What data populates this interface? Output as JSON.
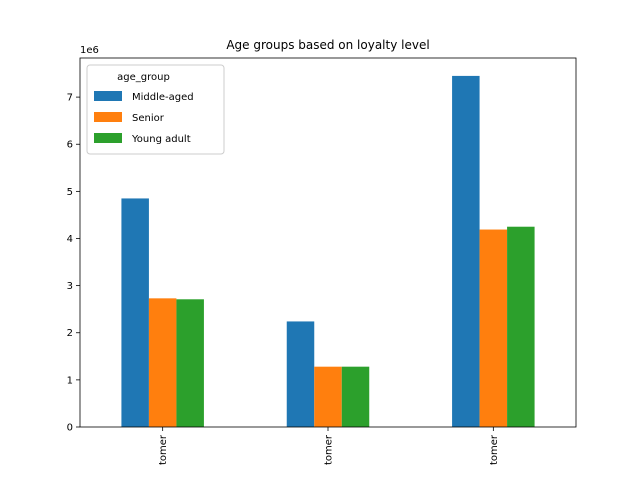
{
  "chart_data": {
    "type": "bar",
    "title": "Age groups based on loyalty level",
    "xlabel": "",
    "ylabel": "",
    "y_scale_note": "1e6",
    "categories": [
      "tomer",
      "tomer",
      "tomer"
    ],
    "series": [
      {
        "name": "Middle-aged",
        "color": "#1f77b4",
        "values": [
          4850000,
          2240000,
          7450000
        ]
      },
      {
        "name": "Senior",
        "color": "#ff7f0e",
        "values": [
          2730000,
          1280000,
          4190000
        ]
      },
      {
        "name": "Young adult",
        "color": "#2ca02c",
        "values": [
          2710000,
          1280000,
          4250000
        ]
      }
    ],
    "yticks": [
      0,
      1,
      2,
      3,
      4,
      5,
      6,
      7
    ],
    "ylim": [
      0,
      7.83
    ],
    "legend_title": "age_group",
    "legend_position": "upper-left",
    "grid": false
  }
}
